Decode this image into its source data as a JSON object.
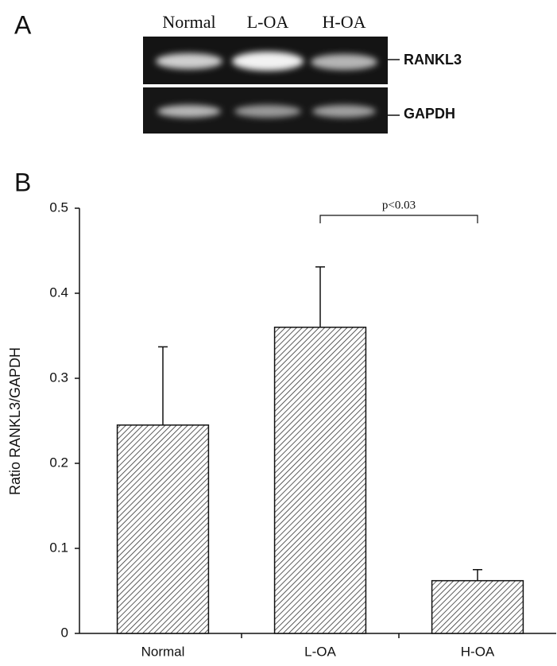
{
  "panel_a": {
    "label": "A",
    "lanes": [
      "Normal",
      "L-OA",
      "H-OA"
    ],
    "bands": [
      "RANKL3",
      "GAPDH"
    ]
  },
  "chart_data": {
    "type": "bar",
    "panel_label": "B",
    "ylabel": "Ratio RANKL3/GAPDH",
    "categories": [
      "Normal",
      "L-OA",
      "H-OA"
    ],
    "values": [
      0.245,
      0.36,
      0.062
    ],
    "errors": [
      0.092,
      0.071,
      0.013
    ],
    "annotation": "p<0.03",
    "ylim": [
      0,
      0.5
    ],
    "yticks": [
      0,
      0.1,
      0.2,
      0.3,
      0.4,
      0.5
    ]
  }
}
